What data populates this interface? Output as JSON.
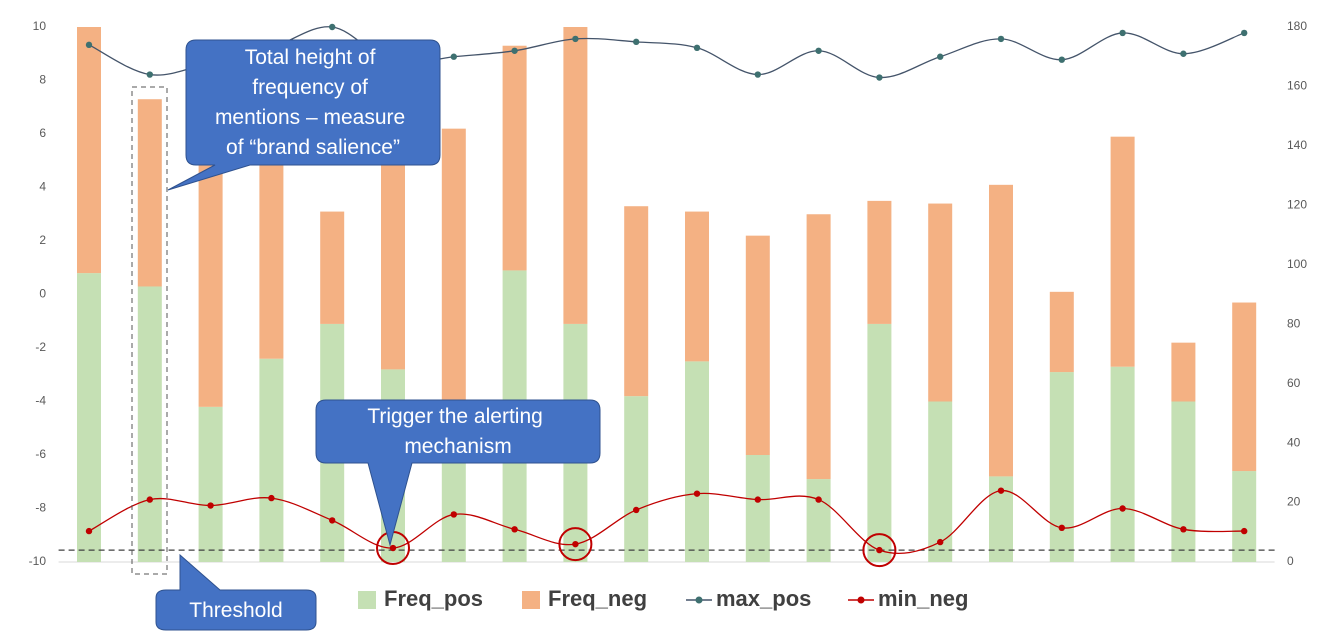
{
  "chart_data": {
    "type": "bar",
    "stacked": true,
    "categories": [
      null,
      null,
      null,
      null,
      null,
      null,
      null,
      null,
      null,
      null,
      null,
      null,
      null,
      null,
      null,
      null,
      null,
      null,
      null,
      null
    ],
    "series": [
      {
        "name": "Freq_pos",
        "color": "#c5e0b4",
        "values": [
          10.8,
          10.3,
          5.8,
          7.6,
          8.9,
          7.2,
          6.0,
          10.9,
          8.9,
          6.2,
          7.5,
          4.0,
          3.1,
          8.9,
          6.0,
          3.2,
          7.1,
          7.3,
          6.0,
          3.4
        ]
      },
      {
        "name": "Freq_neg",
        "color": "#f4b183",
        "values": [
          9.2,
          7.0,
          9.7,
          7.4,
          4.2,
          8.3,
          10.2,
          8.4,
          11.1,
          7.1,
          5.6,
          8.2,
          9.9,
          4.6,
          7.4,
          10.9,
          3.0,
          8.6,
          2.2,
          6.3
        ]
      },
      {
        "name": "max_pos",
        "type": "line",
        "axis": "y2",
        "color": "#44546a",
        "marker_color": "#3e7070",
        "values": [
          174,
          164,
          168,
          173,
          180,
          168,
          170,
          172,
          176,
          175,
          173,
          164,
          172,
          163,
          170,
          176,
          169,
          178,
          171,
          178
        ]
      },
      {
        "name": "min_neg",
        "type": "line",
        "axis": "y2",
        "color": "#c00000",
        "marker_color": "#c00000",
        "values": [
          10.4,
          21,
          19,
          21.5,
          14,
          4.7,
          16,
          11,
          6,
          17.5,
          23,
          21,
          21,
          4,
          6.7,
          24,
          11.5,
          18,
          11,
          10.4
        ],
        "highlighted_points": [
          5,
          8,
          13
        ]
      }
    ],
    "ylim": [
      -10,
      10
    ],
    "yticks": [
      -10,
      -8,
      -6,
      -4,
      -2,
      0,
      2,
      4,
      6,
      8,
      10
    ],
    "y2lim": [
      0,
      180
    ],
    "y2ticks": [
      0,
      20,
      40,
      60,
      80,
      100,
      120,
      140,
      160,
      180
    ],
    "threshold": 4,
    "grid": false,
    "legend": "bottom",
    "annotations": [
      {
        "lines": [
          "Total height of",
          "frequency of",
          "mentions – measure",
          "of “brand salience”"
        ]
      },
      {
        "lines": [
          "Trigger the alerting",
          "mechanism"
        ]
      },
      {
        "lines": [
          "Threshold"
        ]
      }
    ]
  }
}
